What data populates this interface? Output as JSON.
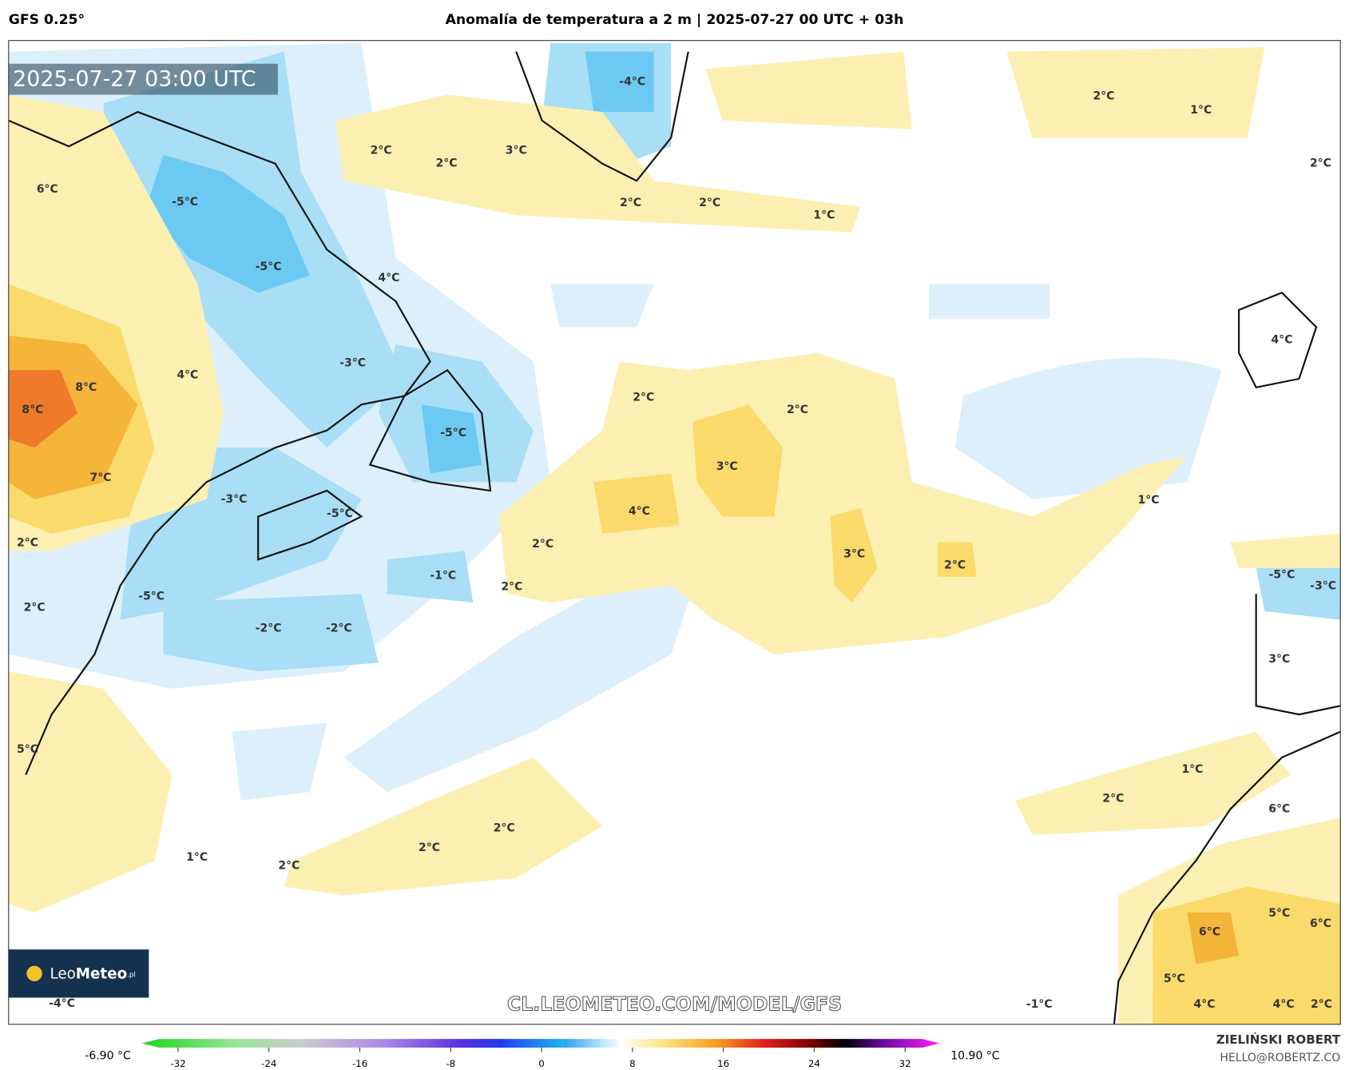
{
  "header": {
    "model": "GFS 0.25°",
    "title": "Anomalía de temperatura a 2 m | 2025-07-27 00 UTC + 03h"
  },
  "map": {
    "timestamp": "2025-07-27 03:00 UTC",
    "watermark": "CL.LEOMETEO.COM/MODEL/GFS",
    "labels": [
      "2°C",
      "2°C",
      "3°C",
      "-4°C",
      "2°C",
      "1°C",
      "2°C",
      "6°C",
      "-5°C",
      "2°C",
      "2°C",
      "1°C",
      "-5°C",
      "4°C",
      "-3°C",
      "4°C",
      "8°C",
      "8°C",
      "2°C",
      "2°C",
      "4°C",
      "-5°C",
      "3°C",
      "7°C",
      "-3°C",
      "-5°C",
      "4°C",
      "1°C",
      "2°C",
      "2°C",
      "3°C",
      "2°C",
      "-1°C",
      "-5°C",
      "-3°C",
      "2°C",
      "-5°C",
      "2°C",
      "-2°C",
      "-2°C",
      "3°C",
      "5°C",
      "1°C",
      "2°C",
      "6°C",
      "2°C",
      "2°C",
      "1°C",
      "2°C",
      "5°C",
      "6°C",
      "6°C",
      "5°C",
      "-4°C",
      "-1°C",
      "4°C",
      "4°C",
      "2°C"
    ]
  },
  "logo": {
    "light": "Leo",
    "bold": "Meteo",
    "suffix": ".pl"
  },
  "colorbar": {
    "min_label": "-6.90 °C",
    "max_label": "10.90 °C",
    "ticks": [
      -32,
      -24,
      -16,
      -8,
      0,
      8,
      16,
      24,
      32
    ]
  },
  "author": {
    "name": "ZIELIŃSKI ROBERT",
    "contact": "HELLO@ROBERTZ.CO"
  }
}
